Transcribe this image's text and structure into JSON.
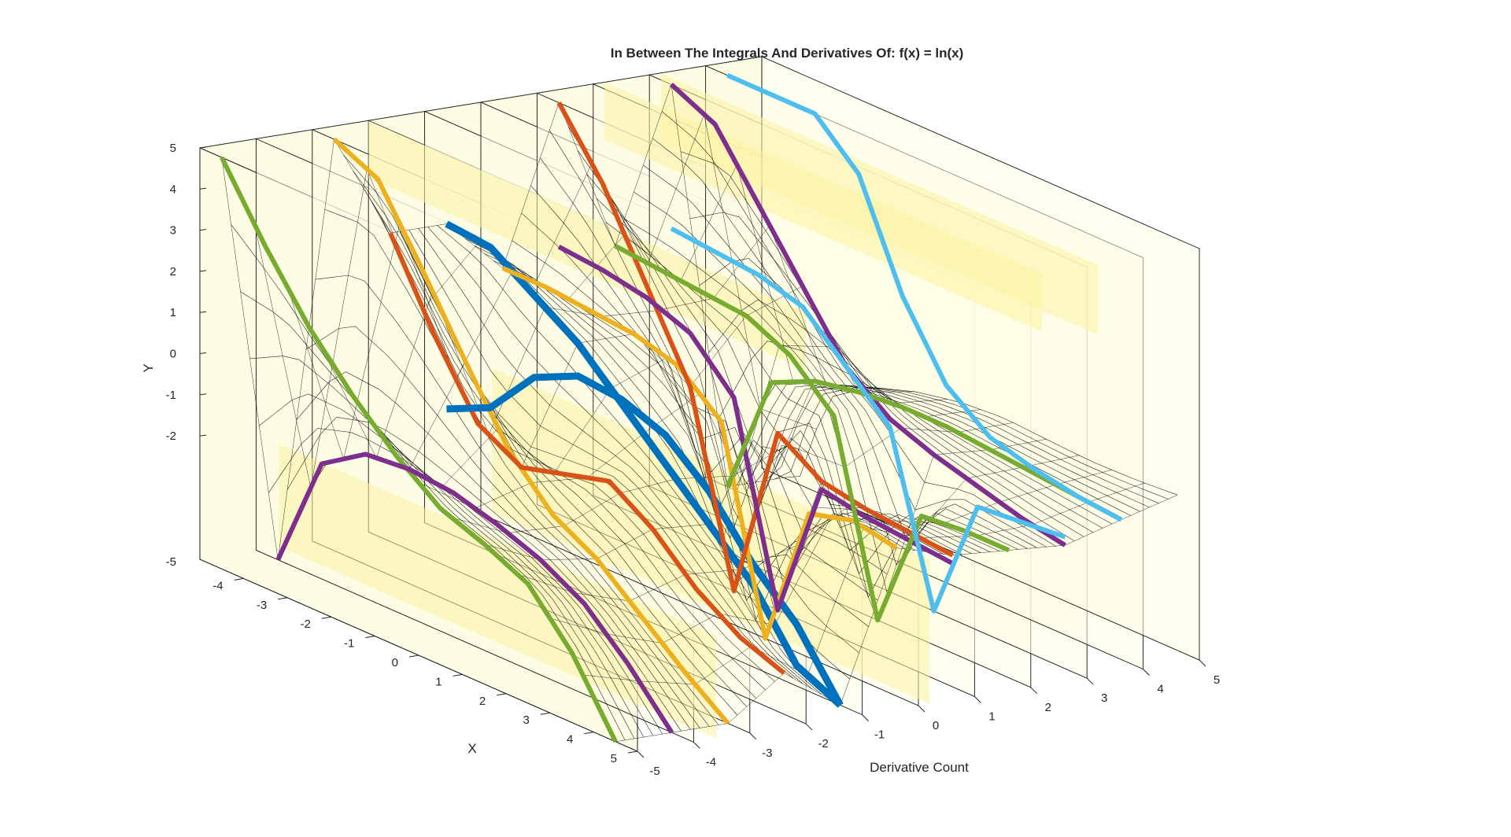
{
  "chart_data": {
    "type": "surface3d",
    "title": "In Between The Integrals And Derivatives Of: f(x) = ln(x)",
    "xlabel": "X",
    "ylabel": "Y",
    "zlabel": "Derivative Count",
    "x_ticks": [
      "-4",
      "-3",
      "-2",
      "-1",
      "0",
      "1",
      "2",
      "3",
      "4",
      "5"
    ],
    "y_ticks": [
      "-2",
      "-1",
      "0",
      "1",
      "2",
      "3",
      "4",
      "5"
    ],
    "y_low_tick": "-5",
    "d_ticks": [
      "-5",
      "-4",
      "-3",
      "-2",
      "-1",
      "0",
      "1",
      "2",
      "3",
      "4",
      "5"
    ],
    "xlim": [
      -5,
      5
    ],
    "ylim": [
      -5,
      5
    ],
    "dlim": [
      -5,
      5
    ],
    "derivative_slices": [
      -5,
      -4,
      -3,
      -2,
      -1,
      0,
      1,
      2,
      3,
      4,
      5
    ],
    "grid": "off",
    "legend": "none",
    "colors": {
      "background": "#ffffff",
      "pane": "#fdfde6",
      "highlight": "#fbf3a0",
      "mesh": "#000000",
      "green": "#77ac30",
      "purple": "#7e2f8e",
      "orange": "#edb120",
      "red": "#d95319",
      "blue": "#0072bd",
      "lightblue": "#4dbeee"
    },
    "integer_order_curves": [
      {
        "color": "green",
        "d": -5,
        "y": [
          5,
          3.3,
          1.8,
          0.6,
          -0.4,
          -1.2,
          -1.6,
          -2.1,
          -3.3,
          -5
        ]
      },
      {
        "color": "purple",
        "d": -4,
        "y": [
          -5,
          -2.2,
          -1.5,
          -1.4,
          -1.5,
          -1.8,
          -2.2,
          -2.8,
          -3.8,
          -5
        ]
      },
      {
        "color": "orange",
        "d": -3,
        "y": [
          5,
          4.5,
          2.8,
          1,
          -0.7,
          -1.8,
          -2.4,
          -3.3,
          -4.2,
          -5
        ]
      },
      {
        "color": "red",
        "d": -2,
        "y": [
          2.5,
          0.5,
          -1.2,
          -1.8,
          -1.5,
          -1.2,
          -1.9,
          -2.9,
          -3.6,
          -4
        ]
      },
      {
        "color": "blue",
        "d": -1,
        "y": [
          2.5,
          2.4,
          1.7,
          1,
          0,
          -1,
          -2,
          -3,
          -4.5,
          -5
        ]
      },
      {
        "color": "blue",
        "d": -1,
        "y": [
          -2,
          -1.5,
          -0.3,
          0.2,
          0.1,
          -0.3,
          -1.2,
          -2.5,
          -3.5,
          -5
        ]
      },
      {
        "color": "orange",
        "d": 0,
        "y": [
          1.2,
          1.2,
          1.1,
          1.0,
          0.7,
          -0.2,
          -5,
          -1.5,
          -1.2,
          -1.4
        ]
      },
      {
        "color": "red",
        "d": 1,
        "y": [
          5,
          3.5,
          1.5,
          -0.5,
          -5,
          -0.7,
          -1.4,
          -1.6,
          -1.7,
          -1.8
        ]
      },
      {
        "color": "purple",
        "d": 1,
        "y": [
          1.5,
          1.4,
          1.2,
          0.8,
          -0.3,
          -5,
          -1.6,
          -1.8,
          -1.9,
          -2
        ]
      },
      {
        "color": "green",
        "d": 2,
        "y": [
          1.3,
          1.2,
          1.1,
          1.0,
          0.5,
          -0.5,
          -5,
          -2,
          -1.9,
          -1.9
        ]
      },
      {
        "color": "purple",
        "d": 3,
        "y": [
          5,
          4.5,
          3,
          1.5,
          0,
          -0.8,
          -1.2,
          -1.5,
          -1.8,
          -2
        ]
      },
      {
        "color": "green",
        "d": 4,
        "y": [
          -5,
          -2,
          -1.5,
          -1.3,
          -1.2,
          -1.2,
          -1.3,
          -1.4,
          -1.5,
          -1.6
        ]
      },
      {
        "color": "lightblue",
        "d": 4,
        "y": [
          5,
          5,
          5,
          4,
          1.5,
          -0.2,
          -1,
          -1.3,
          -1.5,
          -1.6
        ]
      },
      {
        "color": "lightblue",
        "d": 3,
        "y": [
          1.5,
          1.4,
          1.3,
          1,
          0,
          -1,
          -5,
          -2,
          -1.9,
          -1.8
        ]
      }
    ]
  }
}
